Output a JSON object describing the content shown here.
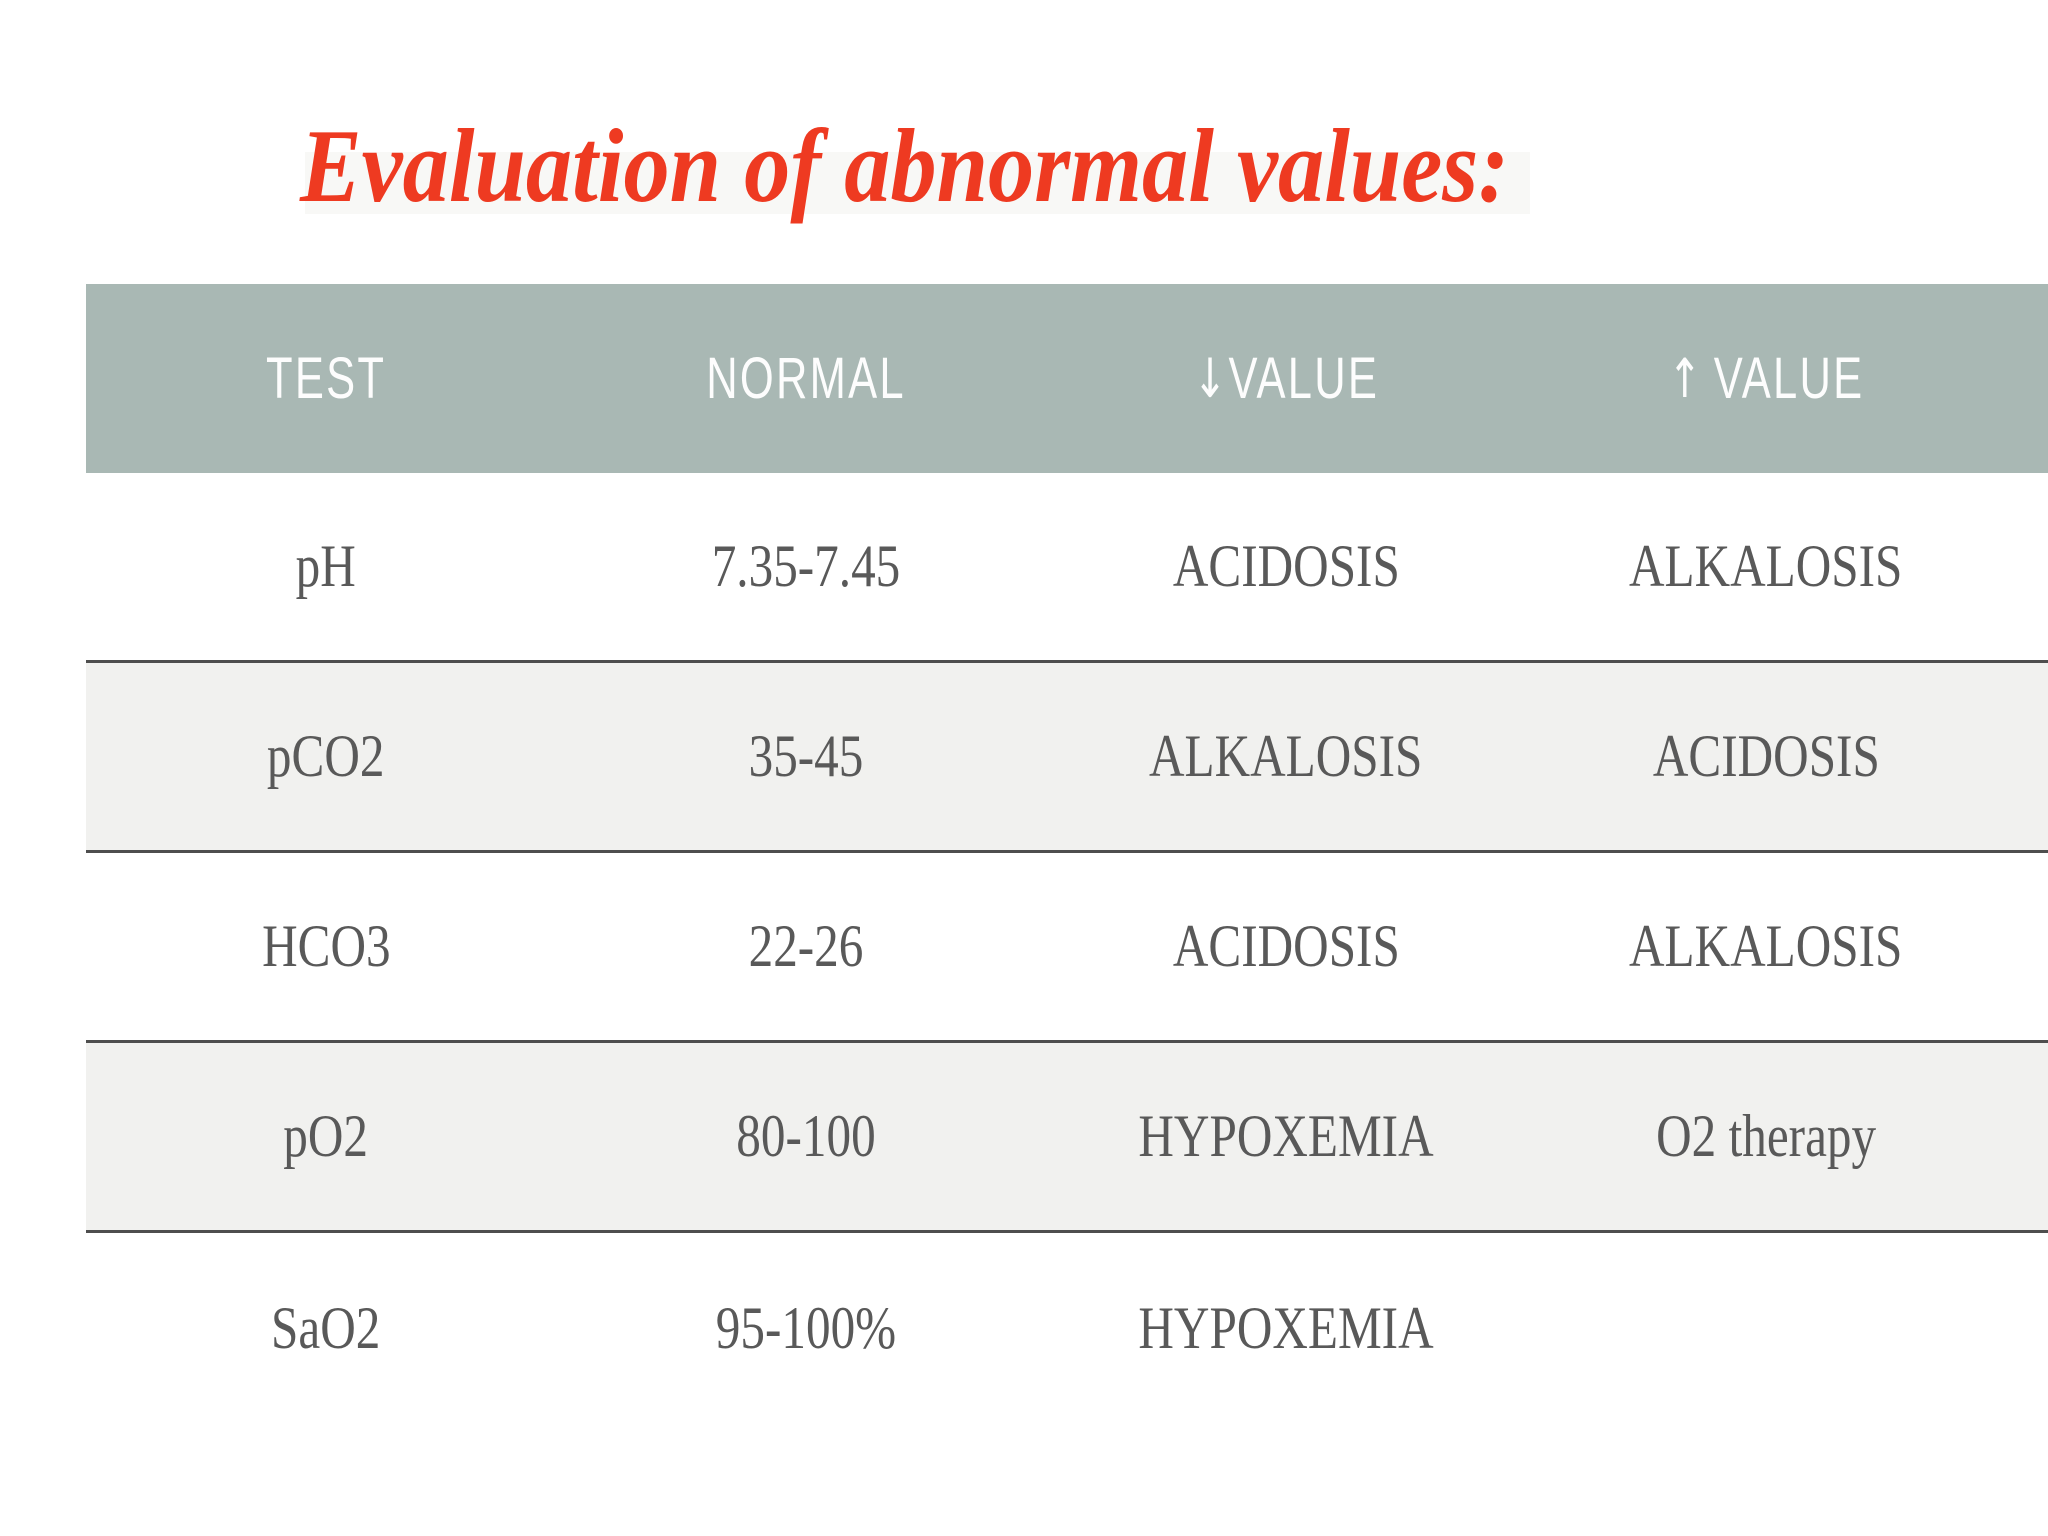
{
  "title": "Evaluation of abnormal values:",
  "colors": {
    "title_red": "#ee3a21",
    "header_bg": "#a9b8b4",
    "header_text": "#fdfdfd",
    "stripe_bg": "#f1f1ef",
    "body_text": "#595959",
    "row_border": "#4e4e4e"
  },
  "table": {
    "columns": [
      {
        "label": "TEST"
      },
      {
        "label": "NORMAL"
      },
      {
        "arrow": "↓",
        "label": "VALUE"
      },
      {
        "arrow": "↑",
        "label": "VALUE"
      }
    ],
    "rows": [
      {
        "cells": [
          "pH",
          "7.35-7.45",
          "ACIDOSIS",
          "ALKALOSIS"
        ]
      },
      {
        "cells": [
          "pCO2",
          "35-45",
          "ALKALOSIS",
          "ACIDOSIS"
        ]
      },
      {
        "cells": [
          "HCO3",
          "22-26",
          "ACIDOSIS",
          "ALKALOSIS"
        ]
      },
      {
        "cells": [
          "pO2",
          "80-100",
          "HYPOXEMIA",
          "O2 therapy"
        ]
      },
      {
        "cells": [
          "SaO2",
          "95-100%",
          "HYPOXEMIA",
          ""
        ]
      }
    ]
  }
}
